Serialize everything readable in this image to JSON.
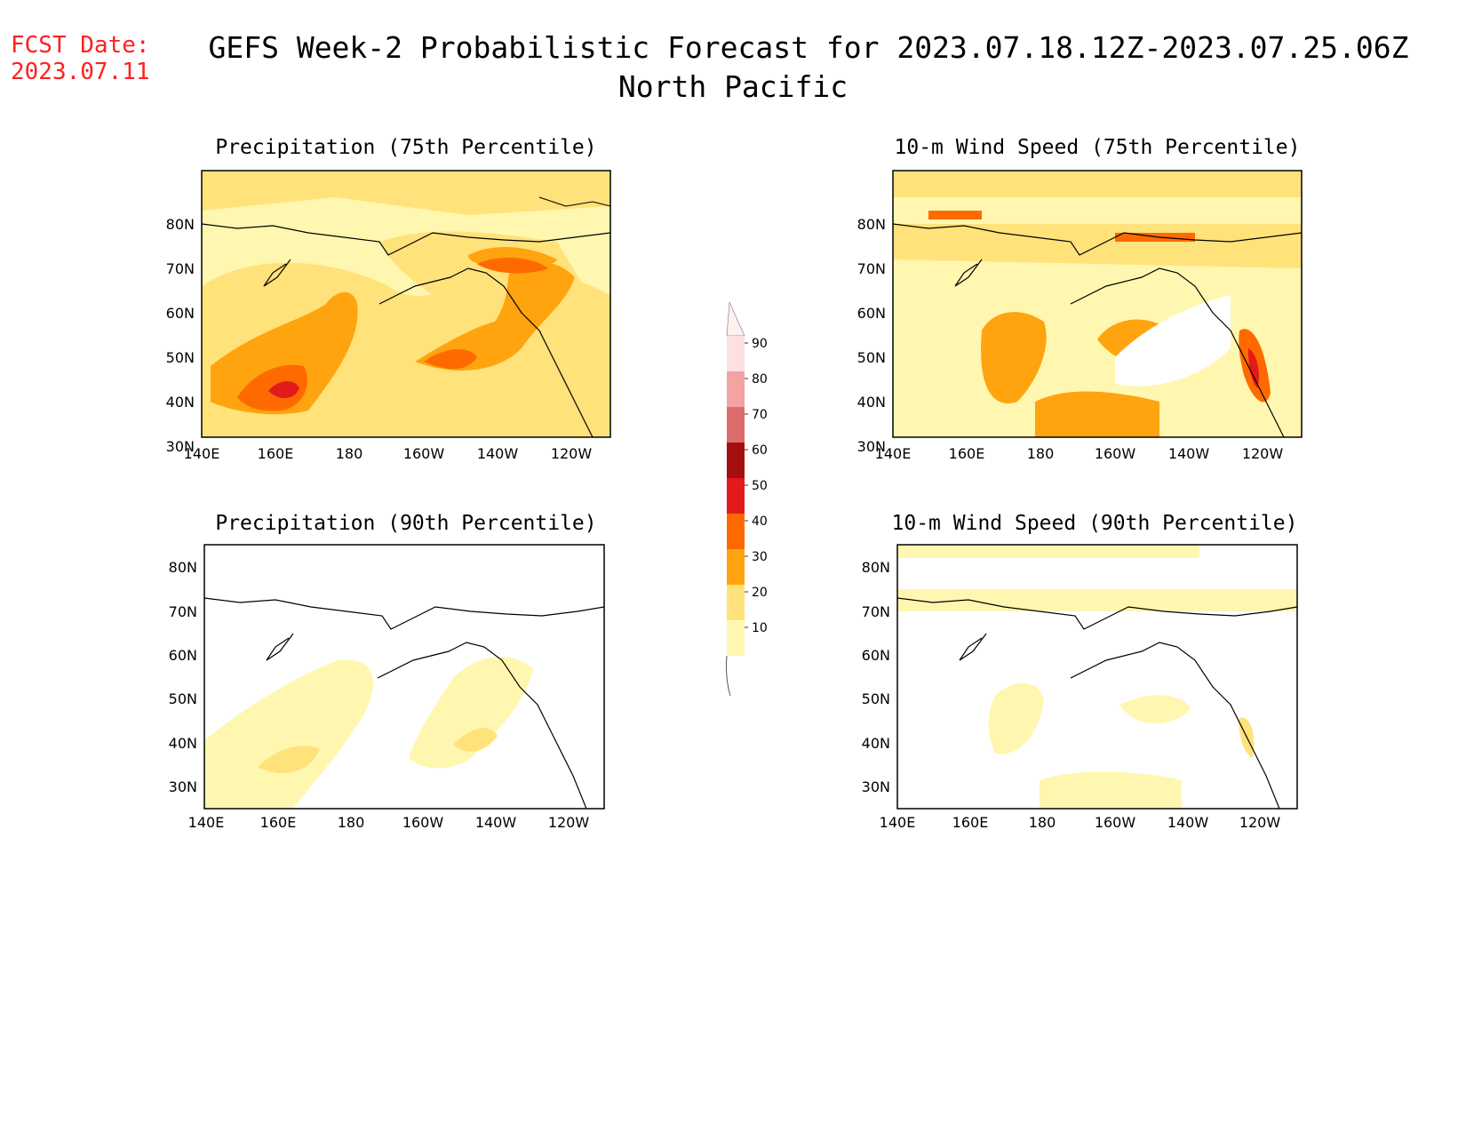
{
  "header": {
    "fcst_label": "FCST Date:",
    "fcst_date": "2023.07.11",
    "title_line1": "GEFS Week-2 Probabilistic Forecast for 2023.07.18.12Z-2023.07.25.06Z",
    "title_line2": "North Pacific"
  },
  "axes": {
    "lat_ticks": [
      "80N",
      "70N",
      "60N",
      "50N",
      "40N",
      "30N"
    ],
    "lon_ticks": [
      "140E",
      "160E",
      "180",
      "160W",
      "140W",
      "120W"
    ]
  },
  "panels": [
    {
      "id": "precip-75",
      "title": "Precipitation (75th Percentile)"
    },
    {
      "id": "wind-75",
      "title": "10-m Wind Speed (75th Percentile)"
    },
    {
      "id": "precip-90",
      "title": "Precipitation (90th Percentile)"
    },
    {
      "id": "wind-90",
      "title": "10-m Wind Speed (90th Percentile)"
    }
  ],
  "colorbar": {
    "labels": [
      "90",
      "80",
      "70",
      "60",
      "50",
      "40",
      "30",
      "20",
      "10"
    ],
    "colors": [
      "#fde0e0",
      "#f4a3a3",
      "#de6b6b",
      "#a50f0f",
      "#e31a1c",
      "#ff6a00",
      "#ffa30f",
      "#ffe27a",
      "#fff7b0"
    ]
  },
  "chart_data": {
    "type": "map",
    "region": "North Pacific",
    "lon_range": [
      "140E",
      "110W"
    ],
    "lat_range": [
      "25N",
      "85N"
    ],
    "probability_levels": [
      10,
      20,
      30,
      40,
      50,
      60,
      70,
      80,
      90
    ]
  }
}
